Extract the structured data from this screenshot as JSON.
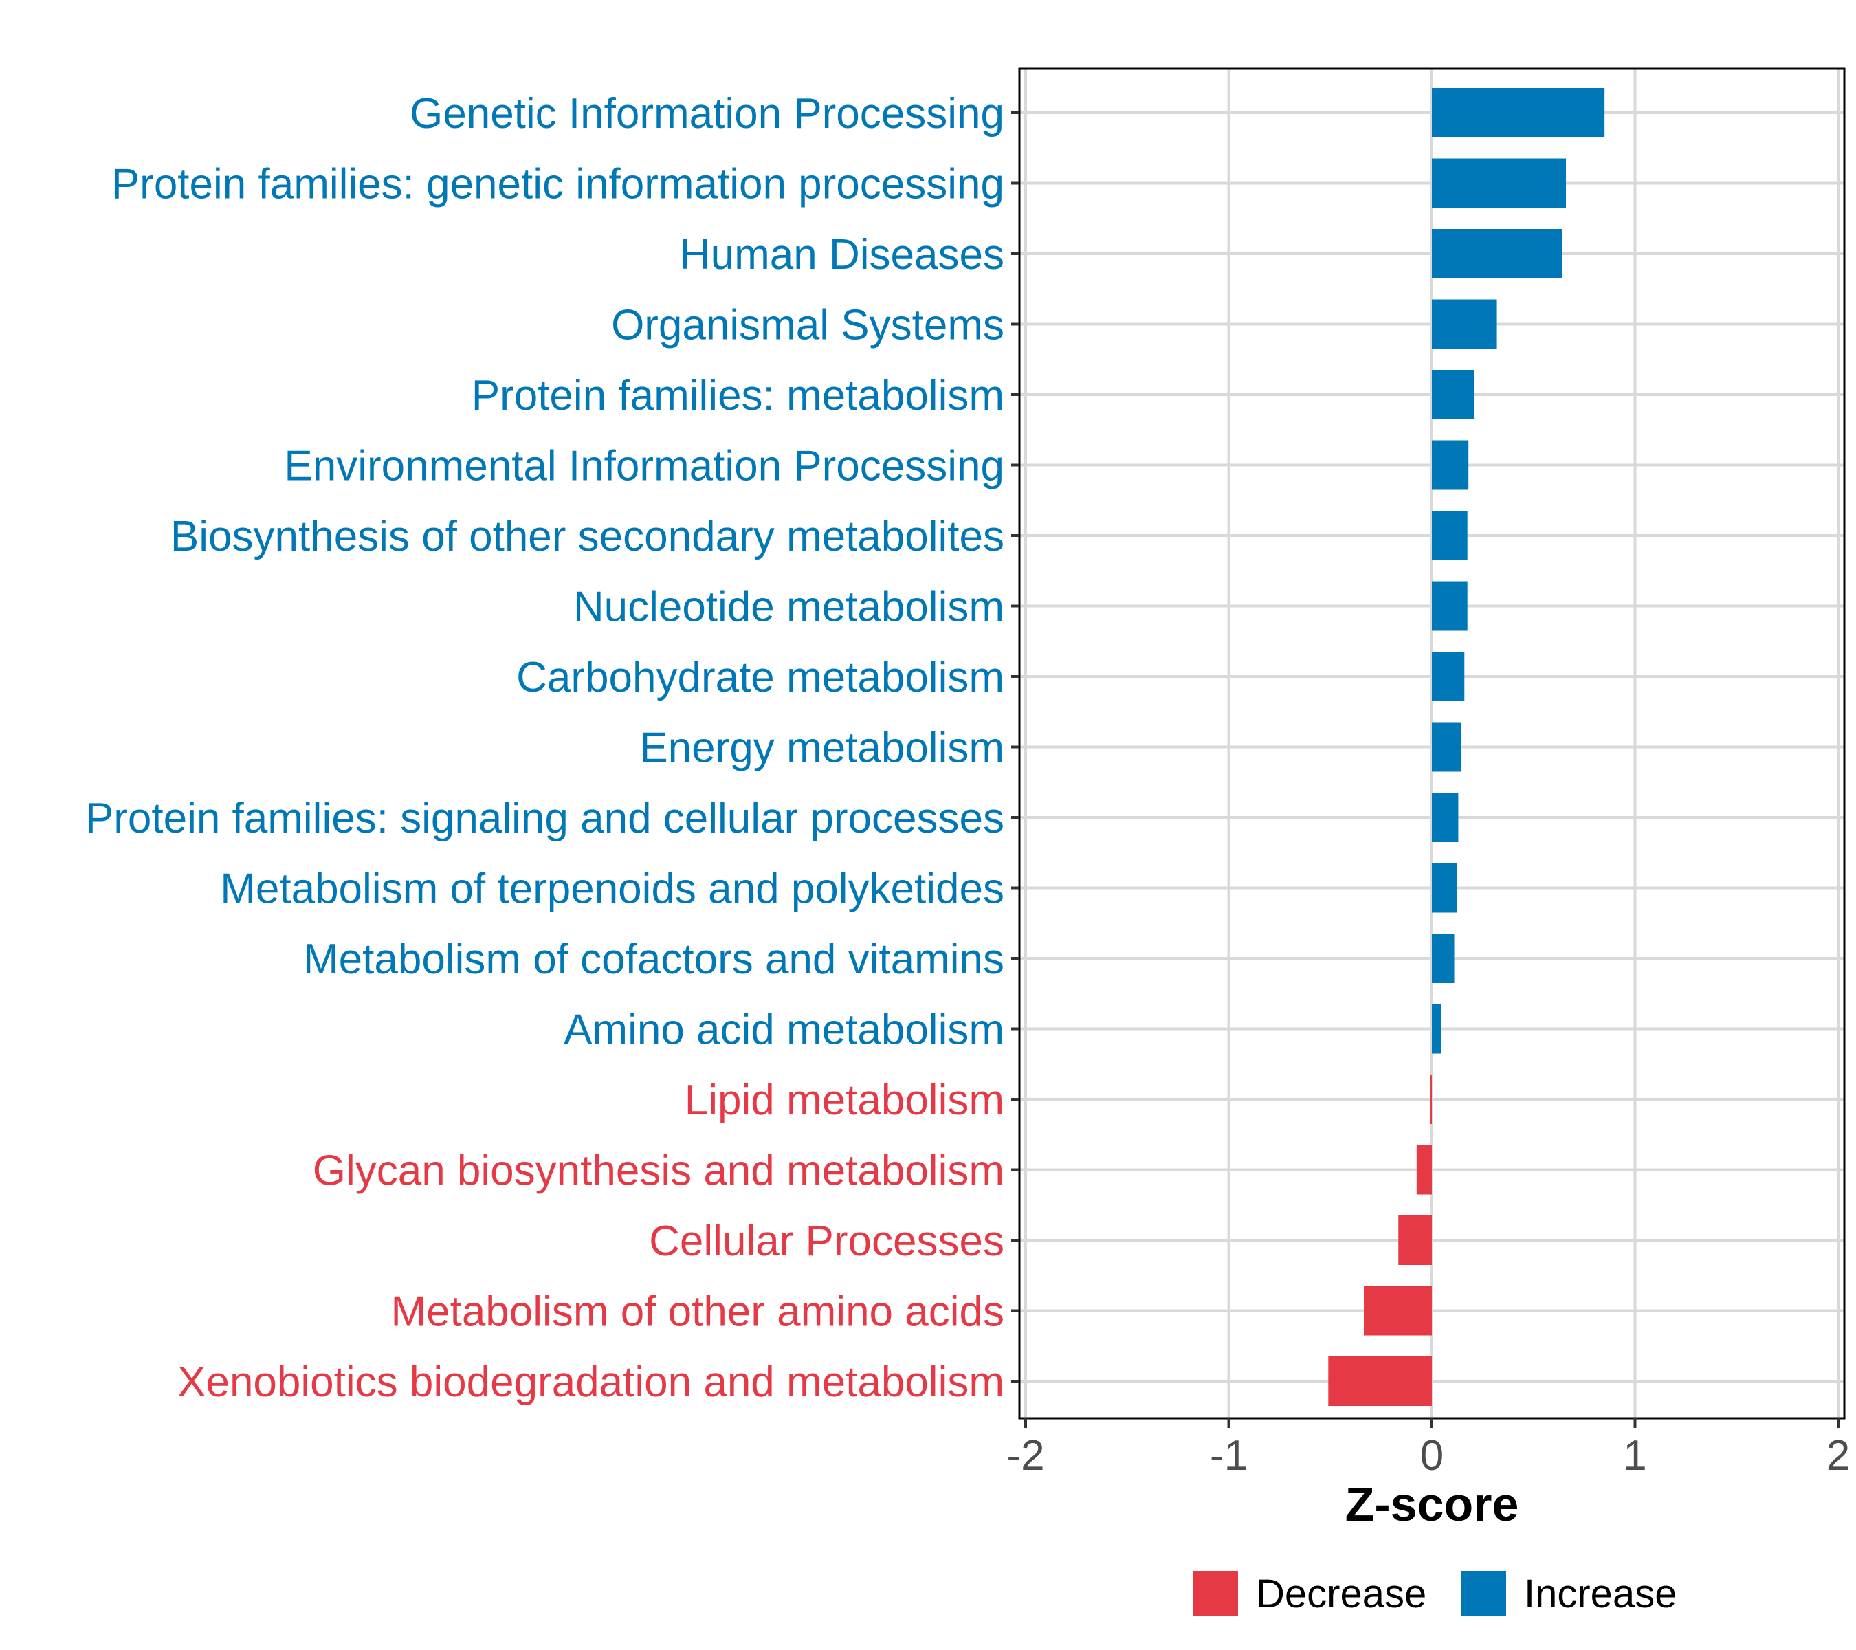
{
  "chart_data": {
    "type": "bar",
    "orientation": "horizontal",
    "title": "",
    "xlabel": "Z-score",
    "ylabel": "",
    "xlim": [
      -2,
      2
    ],
    "xticks": [
      -2,
      -1,
      0,
      1,
      2
    ],
    "xtick_labels": [
      "-2",
      "-1",
      "0",
      "1",
      "2"
    ],
    "grid": true,
    "legend": {
      "placement": "bottom",
      "entries": [
        {
          "label": "Decrease",
          "color": "#E63946"
        },
        {
          "label": "Increase",
          "color": "#0077B6"
        }
      ]
    },
    "categories": [
      "Genetic Information Processing",
      "Protein families: genetic information processing",
      "Human Diseases",
      "Organismal Systems",
      "Protein families: metabolism",
      "Environmental Information Processing",
      "Biosynthesis of other secondary metabolites",
      "Nucleotide metabolism",
      "Carbohydrate metabolism",
      "Energy metabolism",
      "Protein families: signaling and cellular processes",
      "Metabolism of terpenoids and polyketides",
      "Metabolism of cofactors and vitamins",
      "Amino acid metabolism",
      "Lipid metabolism",
      "Glycan biosynthesis and metabolism",
      "Cellular Processes",
      "Metabolism of other amino acids",
      "Xenobiotics biodegradation and metabolism"
    ],
    "values": [
      0.85,
      0.66,
      0.64,
      0.32,
      0.21,
      0.18,
      0.175,
      0.175,
      0.16,
      0.145,
      0.13,
      0.125,
      0.11,
      0.045,
      -0.01,
      -0.075,
      -0.165,
      -0.335,
      -0.51
    ],
    "groups": [
      "Increase",
      "Increase",
      "Increase",
      "Increase",
      "Increase",
      "Increase",
      "Increase",
      "Increase",
      "Increase",
      "Increase",
      "Increase",
      "Increase",
      "Increase",
      "Increase",
      "Decrease",
      "Decrease",
      "Decrease",
      "Decrease",
      "Decrease"
    ]
  },
  "colors": {
    "Increase": "#0077B6",
    "Decrease": "#E63946"
  }
}
